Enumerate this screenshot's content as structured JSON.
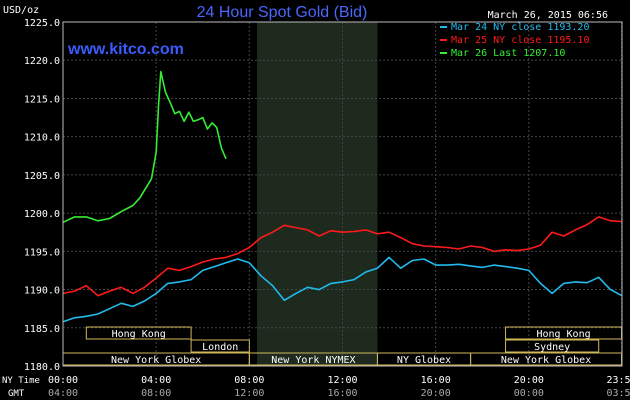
{
  "chart_data": {
    "type": "line",
    "title": "24 Hour Spot Gold (Bid)",
    "ylabel": "USD/oz",
    "watermark": "www.kitco.com",
    "timestamp": "March 26, 2015 06:56",
    "ylim": [
      1180,
      1225
    ],
    "y_ticks": [
      "1225.0",
      "1220.0",
      "1215.0",
      "1210.0",
      "1205.0",
      "1200.0",
      "1195.0",
      "1190.0",
      "1185.0",
      "1180.0"
    ],
    "x_label_ny": "NY Time",
    "x_label_gmt": "GMT",
    "x_ticks_ny": [
      "00:00",
      "04:00",
      "08:00",
      "12:00",
      "16:00",
      "20:00",
      "23:59"
    ],
    "x_ticks_gmt": [
      "04:00",
      "08:00",
      "12:00",
      "16:00",
      "20:00",
      "00:00",
      "03:59"
    ],
    "x_unit": "hours since 00:00 NY time",
    "grid": true,
    "legend_position": "top-right",
    "colors": {
      "background": "#000000",
      "grid": "#444444",
      "title": "#4a66ff",
      "watermark": "#3b5bff",
      "shade": "#1d2a1d",
      "session": "#cfb75a"
    },
    "sessions": [
      {
        "label": "Hong Kong",
        "row": 0
      },
      {
        "label": "Hong Kong",
        "row": 0
      },
      {
        "label": "London",
        "row": 1
      },
      {
        "label": "Sydney",
        "row": 1
      },
      {
        "label": "New York Globex",
        "row": 2
      },
      {
        "label": "New York NYMEX",
        "row": 2
      },
      {
        "label": "NY Globex",
        "row": 2
      },
      {
        "label": "New York Globex",
        "row": 2
      }
    ],
    "series": [
      {
        "name": "Mar 24 NY close 1193.20",
        "color": "#22bbee",
        "x": [
          0,
          0.5,
          1,
          1.5,
          2,
          2.5,
          3,
          3.5,
          4,
          4.5,
          5,
          5.5,
          6,
          6.5,
          7,
          7.5,
          8,
          8.5,
          9,
          9.5,
          10,
          10.5,
          11,
          11.5,
          12,
          12.5,
          13,
          13.5,
          14,
          14.5,
          15,
          15.5,
          16,
          16.5,
          17,
          17.5,
          18,
          18.5,
          19,
          19.5,
          20,
          20.5,
          21,
          21.5,
          22,
          22.5,
          23,
          23.5,
          24
        ],
        "values": [
          1185.8,
          1186.3,
          1186.5,
          1186.8,
          1187.5,
          1188.2,
          1187.8,
          1188.5,
          1189.5,
          1190.8,
          1191.0,
          1191.3,
          1192.5,
          1193.0,
          1193.5,
          1194.0,
          1193.5,
          1191.8,
          1190.5,
          1188.6,
          1189.5,
          1190.3,
          1190.0,
          1190.8,
          1191.0,
          1191.3,
          1192.3,
          1192.8,
          1194.2,
          1192.8,
          1193.8,
          1194.0,
          1193.2,
          1193.2,
          1193.3,
          1193.1,
          1192.9,
          1193.2,
          1193.0,
          1192.8,
          1192.5,
          1190.8,
          1189.5,
          1190.8,
          1191.0,
          1190.9,
          1191.6,
          1190.0,
          1189.2
        ]
      },
      {
        "name": "Mar 25 NY close 1195.10",
        "color": "#ff1a1a",
        "x": [
          0,
          0.5,
          1,
          1.5,
          2,
          2.5,
          3,
          3.5,
          4,
          4.5,
          5,
          5.5,
          6,
          6.5,
          7,
          7.5,
          8,
          8.5,
          9,
          9.5,
          10,
          10.5,
          11,
          11.5,
          12,
          12.5,
          13,
          13.5,
          14,
          14.5,
          15,
          15.5,
          16,
          16.5,
          17,
          17.5,
          18,
          18.5,
          19,
          19.5,
          20,
          20.5,
          21,
          21.5,
          22,
          22.5,
          23,
          23.5,
          24
        ],
        "values": [
          1189.5,
          1189.8,
          1190.5,
          1189.2,
          1189.8,
          1190.3,
          1189.5,
          1190.3,
          1191.5,
          1192.8,
          1192.5,
          1193.0,
          1193.6,
          1194.0,
          1194.2,
          1194.7,
          1195.5,
          1196.8,
          1197.5,
          1198.4,
          1198.1,
          1197.8,
          1197.0,
          1197.7,
          1197.5,
          1197.6,
          1197.8,
          1197.3,
          1197.5,
          1196.8,
          1196.0,
          1195.7,
          1195.6,
          1195.5,
          1195.3,
          1195.7,
          1195.5,
          1195.0,
          1195.2,
          1195.1,
          1195.3,
          1195.8,
          1197.5,
          1197.0,
          1197.8,
          1198.5,
          1199.5,
          1199.0,
          1198.9
        ]
      },
      {
        "name": "Mar 26 Last 1207.10",
        "color": "#33ee33",
        "x": [
          0,
          0.5,
          1,
          1.5,
          2,
          2.5,
          3,
          3.3,
          3.6,
          3.8,
          4.0,
          4.1,
          4.2,
          4.4,
          4.6,
          4.8,
          5.0,
          5.2,
          5.4,
          5.6,
          5.8,
          6.0,
          6.2,
          6.4,
          6.6,
          6.8,
          7.0
        ],
        "values": [
          1198.8,
          1199.5,
          1199.5,
          1199.0,
          1199.3,
          1200.2,
          1201.0,
          1202.0,
          1203.5,
          1204.5,
          1208.0,
          1214.0,
          1218.5,
          1215.8,
          1214.5,
          1213.0,
          1213.3,
          1212.0,
          1213.2,
          1212.0,
          1212.2,
          1212.5,
          1211.0,
          1211.8,
          1211.2,
          1208.5,
          1207.1
        ]
      }
    ]
  }
}
